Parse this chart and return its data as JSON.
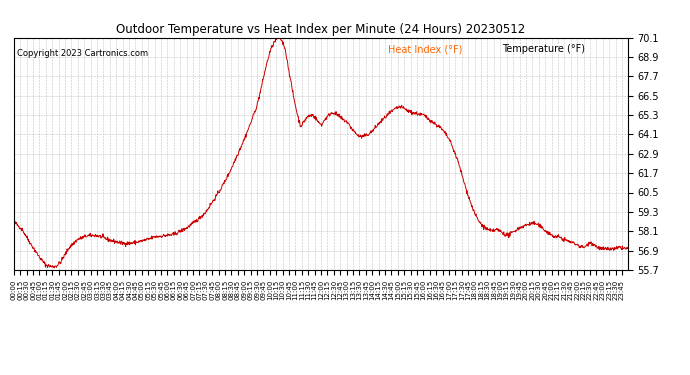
{
  "title": "Outdoor Temperature vs Heat Index per Minute (24 Hours) 20230512",
  "copyright": "Copyright 2023 Cartronics.com",
  "legend_heat_index": "Heat Index (°F)",
  "legend_temperature": "Temperature (°F)",
  "line_color": "#cc0000",
  "background_color": "#ffffff",
  "grid_color": "#aaaaaa",
  "title_color": "#000000",
  "copyright_color": "#000000",
  "legend_heat_color": "#ff6600",
  "legend_temp_color": "#000000",
  "ylim": [
    55.7,
    70.1
  ],
  "yticks": [
    55.7,
    56.9,
    58.1,
    59.3,
    60.5,
    61.7,
    62.9,
    64.1,
    65.3,
    66.5,
    67.7,
    68.9,
    70.1
  ],
  "keypoints": [
    [
      0,
      58.7
    ],
    [
      20,
      58.2
    ],
    [
      40,
      57.3
    ],
    [
      60,
      56.5
    ],
    [
      75,
      56.0
    ],
    [
      90,
      55.9
    ],
    [
      100,
      55.95
    ],
    [
      110,
      56.2
    ],
    [
      130,
      57.1
    ],
    [
      150,
      57.6
    ],
    [
      170,
      57.8
    ],
    [
      190,
      57.85
    ],
    [
      200,
      57.8
    ],
    [
      215,
      57.65
    ],
    [
      225,
      57.55
    ],
    [
      240,
      57.45
    ],
    [
      255,
      57.35
    ],
    [
      270,
      57.35
    ],
    [
      285,
      57.4
    ],
    [
      300,
      57.5
    ],
    [
      315,
      57.6
    ],
    [
      330,
      57.75
    ],
    [
      345,
      57.8
    ],
    [
      360,
      57.85
    ],
    [
      375,
      57.9
    ],
    [
      390,
      58.1
    ],
    [
      405,
      58.3
    ],
    [
      420,
      58.6
    ],
    [
      435,
      58.9
    ],
    [
      450,
      59.3
    ],
    [
      465,
      59.9
    ],
    [
      480,
      60.5
    ],
    [
      495,
      61.2
    ],
    [
      510,
      62.0
    ],
    [
      525,
      62.9
    ],
    [
      540,
      63.8
    ],
    [
      555,
      64.8
    ],
    [
      570,
      65.9
    ],
    [
      580,
      67.0
    ],
    [
      590,
      68.2
    ],
    [
      600,
      69.2
    ],
    [
      610,
      69.8
    ],
    [
      618,
      70.05
    ],
    [
      622,
      70.1
    ],
    [
      626,
      70.0
    ],
    [
      635,
      69.5
    ],
    [
      645,
      68.0
    ],
    [
      655,
      66.5
    ],
    [
      663,
      65.5
    ],
    [
      668,
      65.0
    ],
    [
      672,
      64.6
    ],
    [
      678,
      64.8
    ],
    [
      685,
      65.1
    ],
    [
      692,
      65.25
    ],
    [
      700,
      65.3
    ],
    [
      708,
      65.1
    ],
    [
      715,
      64.8
    ],
    [
      722,
      64.7
    ],
    [
      728,
      65.0
    ],
    [
      735,
      65.2
    ],
    [
      742,
      65.4
    ],
    [
      750,
      65.45
    ],
    [
      758,
      65.3
    ],
    [
      765,
      65.15
    ],
    [
      772,
      65.0
    ],
    [
      780,
      64.9
    ],
    [
      788,
      64.6
    ],
    [
      795,
      64.35
    ],
    [
      802,
      64.15
    ],
    [
      808,
      64.0
    ],
    [
      815,
      63.95
    ],
    [
      822,
      64.0
    ],
    [
      830,
      64.1
    ],
    [
      840,
      64.3
    ],
    [
      850,
      64.6
    ],
    [
      860,
      64.9
    ],
    [
      870,
      65.15
    ],
    [
      880,
      65.4
    ],
    [
      890,
      65.6
    ],
    [
      898,
      65.75
    ],
    [
      906,
      65.8
    ],
    [
      915,
      65.7
    ],
    [
      924,
      65.55
    ],
    [
      933,
      65.45
    ],
    [
      942,
      65.4
    ],
    [
      951,
      65.35
    ],
    [
      960,
      65.3
    ],
    [
      970,
      65.1
    ],
    [
      980,
      64.9
    ],
    [
      990,
      64.7
    ],
    [
      1000,
      64.5
    ],
    [
      1010,
      64.2
    ],
    [
      1020,
      63.8
    ],
    [
      1030,
      63.2
    ],
    [
      1040,
      62.5
    ],
    [
      1050,
      61.6
    ],
    [
      1060,
      60.7
    ],
    [
      1070,
      59.9
    ],
    [
      1080,
      59.2
    ],
    [
      1090,
      58.7
    ],
    [
      1100,
      58.4
    ],
    [
      1110,
      58.2
    ],
    [
      1118,
      58.1
    ],
    [
      1125,
      58.15
    ],
    [
      1130,
      58.2
    ],
    [
      1138,
      58.15
    ],
    [
      1145,
      58.0
    ],
    [
      1152,
      57.9
    ],
    [
      1160,
      57.85
    ],
    [
      1168,
      58.0
    ],
    [
      1178,
      58.2
    ],
    [
      1188,
      58.35
    ],
    [
      1198,
      58.45
    ],
    [
      1208,
      58.55
    ],
    [
      1218,
      58.6
    ],
    [
      1228,
      58.5
    ],
    [
      1238,
      58.3
    ],
    [
      1248,
      58.1
    ],
    [
      1258,
      57.9
    ],
    [
      1268,
      57.75
    ],
    [
      1278,
      57.75
    ],
    [
      1288,
      57.6
    ],
    [
      1298,
      57.5
    ],
    [
      1308,
      57.4
    ],
    [
      1318,
      57.3
    ],
    [
      1328,
      57.15
    ],
    [
      1335,
      57.1
    ],
    [
      1342,
      57.2
    ],
    [
      1350,
      57.45
    ],
    [
      1358,
      57.3
    ],
    [
      1365,
      57.15
    ],
    [
      1372,
      57.05
    ],
    [
      1380,
      57.0
    ],
    [
      1390,
      57.0
    ],
    [
      1400,
      57.0
    ],
    [
      1410,
      57.0
    ],
    [
      1420,
      57.1
    ],
    [
      1430,
      57.05
    ],
    [
      1439,
      57.0
    ]
  ]
}
